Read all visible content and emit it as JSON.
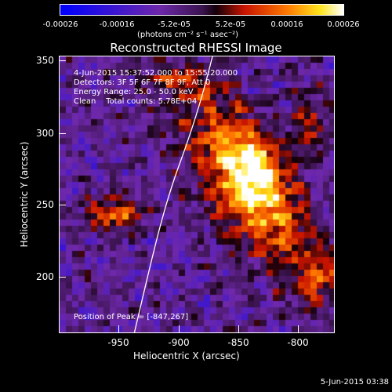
{
  "colorbar": {
    "tick_labels": [
      "-0.00026",
      "-0.00016",
      "-5.2e-05",
      "5.2e-05",
      "0.00016",
      "0.00026"
    ],
    "units": "(photons cm⁻² s⁻¹ asec⁻²)"
  },
  "title": "Reconstructed RHESSI Image",
  "info": {
    "time_range": "4-Jun-2015 15:37:52.000 to 15:55:20.000",
    "detectors": "Detectors: 3F 5F 6F 7F 8F 9F, Att 0",
    "energy": "Energy Range: 25.0 - 50.0 keV",
    "clean": "Clean    Total counts: 5.78E+04"
  },
  "peak": "Position of Peak = [-847,267]",
  "axes": {
    "xlabel": "Heliocentric X (arcsec)",
    "ylabel": "Heliocentric Y (arcsec)",
    "x_ticks": [
      "-950",
      "-900",
      "-850",
      "-800"
    ],
    "y_ticks": [
      "350",
      "300",
      "250",
      "200"
    ]
  },
  "timestamp": "5-Jun-2015 03:38"
}
